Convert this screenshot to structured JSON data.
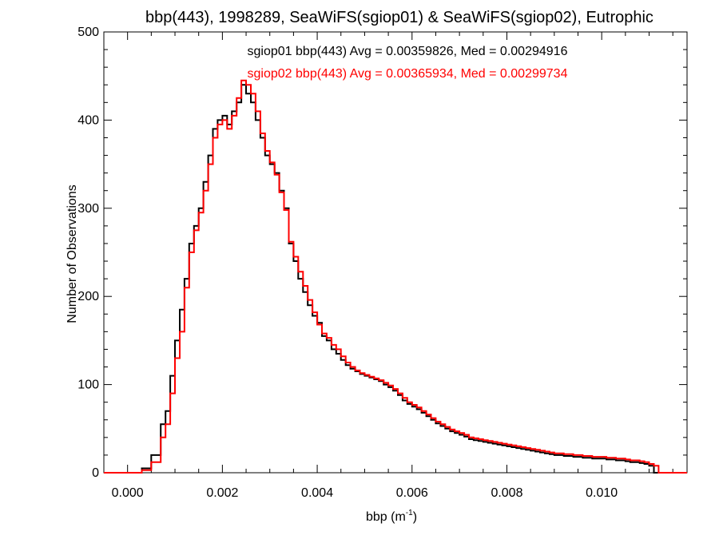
{
  "chart_data": {
    "type": "histogram",
    "title": "bbp(443), 1998289, SeaWiFS(sgiop01) & SeaWiFS(sgiop02), Eutrophic",
    "xlabel_base": "bbp (m",
    "xlabel_sup": "-1",
    "xlabel_close": ")",
    "ylabel": "Number of Observations",
    "xlim": [
      -0.0005,
      0.0118
    ],
    "ylim": [
      0,
      500
    ],
    "xticks": [
      0.0,
      0.002,
      0.004,
      0.006,
      0.008,
      0.01
    ],
    "xtick_labels": [
      "0.000",
      "0.002",
      "0.004",
      "0.006",
      "0.008",
      "0.010"
    ],
    "yticks": [
      0,
      100,
      200,
      300,
      400,
      500
    ],
    "ytick_labels": [
      "0",
      "100",
      "200",
      "300",
      "400",
      "500"
    ],
    "legend_position": "top-center",
    "series": [
      {
        "name": "sgiop01",
        "color": "#000000",
        "annotation": "sgiop01 bbp(443) Avg = 0.00359826, Med = 0.00294916",
        "bins": [
          [
            -0.0005,
            0
          ],
          [
            0.0003,
            5
          ],
          [
            0.0005,
            20
          ],
          [
            0.0007,
            55
          ],
          [
            0.0008,
            70
          ],
          [
            0.0009,
            110
          ],
          [
            0.001,
            150
          ],
          [
            0.0011,
            185
          ],
          [
            0.0012,
            220
          ],
          [
            0.0013,
            260
          ],
          [
            0.0014,
            280
          ],
          [
            0.0015,
            300
          ],
          [
            0.0016,
            330
          ],
          [
            0.0017,
            360
          ],
          [
            0.0018,
            390
          ],
          [
            0.0019,
            400
          ],
          [
            0.002,
            405
          ],
          [
            0.0021,
            395
          ],
          [
            0.0022,
            410
          ],
          [
            0.0023,
            420
          ],
          [
            0.0024,
            440
          ],
          [
            0.0025,
            430
          ],
          [
            0.0026,
            420
          ],
          [
            0.0027,
            400
          ],
          [
            0.0028,
            380
          ],
          [
            0.0029,
            360
          ],
          [
            0.003,
            350
          ],
          [
            0.0031,
            340
          ],
          [
            0.0032,
            320
          ],
          [
            0.0033,
            300
          ],
          [
            0.0034,
            260
          ],
          [
            0.0035,
            240
          ],
          [
            0.0036,
            220
          ],
          [
            0.0037,
            205
          ],
          [
            0.0038,
            190
          ],
          [
            0.0039,
            178
          ],
          [
            0.004,
            170
          ],
          [
            0.0041,
            155
          ],
          [
            0.0042,
            150
          ],
          [
            0.0043,
            140
          ],
          [
            0.0044,
            135
          ],
          [
            0.0045,
            128
          ],
          [
            0.0046,
            122
          ],
          [
            0.0047,
            118
          ],
          [
            0.0048,
            115
          ],
          [
            0.0049,
            112
          ],
          [
            0.005,
            110
          ],
          [
            0.0051,
            108
          ],
          [
            0.0052,
            106
          ],
          [
            0.0053,
            104
          ],
          [
            0.0054,
            100
          ],
          [
            0.0055,
            97
          ],
          [
            0.0056,
            93
          ],
          [
            0.0057,
            88
          ],
          [
            0.0058,
            82
          ],
          [
            0.0059,
            78
          ],
          [
            0.006,
            75
          ],
          [
            0.0061,
            72
          ],
          [
            0.0062,
            68
          ],
          [
            0.0063,
            64
          ],
          [
            0.0064,
            60
          ],
          [
            0.0065,
            56
          ],
          [
            0.0066,
            53
          ],
          [
            0.0067,
            50
          ],
          [
            0.0068,
            47
          ],
          [
            0.0069,
            45
          ],
          [
            0.007,
            43
          ],
          [
            0.0071,
            41
          ],
          [
            0.0072,
            38
          ],
          [
            0.0073,
            37
          ],
          [
            0.0074,
            36
          ],
          [
            0.0075,
            35
          ],
          [
            0.0076,
            34
          ],
          [
            0.0077,
            33
          ],
          [
            0.0078,
            32
          ],
          [
            0.0079,
            31
          ],
          [
            0.008,
            30
          ],
          [
            0.0081,
            29
          ],
          [
            0.0082,
            28
          ],
          [
            0.0083,
            27
          ],
          [
            0.0084,
            26
          ],
          [
            0.0085,
            25
          ],
          [
            0.0086,
            24
          ],
          [
            0.0087,
            23
          ],
          [
            0.0088,
            22
          ],
          [
            0.0089,
            21
          ],
          [
            0.009,
            20
          ],
          [
            0.0091,
            20
          ],
          [
            0.0092,
            19
          ],
          [
            0.0093,
            19
          ],
          [
            0.0094,
            18
          ],
          [
            0.0095,
            18
          ],
          [
            0.0096,
            17
          ],
          [
            0.0097,
            17
          ],
          [
            0.0098,
            16
          ],
          [
            0.0099,
            16
          ],
          [
            0.01,
            16
          ],
          [
            0.0101,
            15
          ],
          [
            0.0102,
            15
          ],
          [
            0.0103,
            14
          ],
          [
            0.0104,
            14
          ],
          [
            0.0105,
            13
          ],
          [
            0.0106,
            12
          ],
          [
            0.0107,
            12
          ],
          [
            0.0108,
            11
          ],
          [
            0.0109,
            10
          ],
          [
            0.011,
            8
          ],
          [
            0.0111,
            0
          ]
        ]
      },
      {
        "name": "sgiop02",
        "color": "#ff0000",
        "annotation": "sgiop02 bbp(443) Avg = 0.00365934, Med = 0.00299734",
        "bins": [
          [
            -0.0005,
            0
          ],
          [
            0.0003,
            3
          ],
          [
            0.0005,
            12
          ],
          [
            0.0007,
            40
          ],
          [
            0.0008,
            55
          ],
          [
            0.0009,
            90
          ],
          [
            0.001,
            130
          ],
          [
            0.0011,
            160
          ],
          [
            0.0012,
            210
          ],
          [
            0.0013,
            250
          ],
          [
            0.0014,
            275
          ],
          [
            0.0015,
            295
          ],
          [
            0.0016,
            320
          ],
          [
            0.0017,
            350
          ],
          [
            0.0018,
            380
          ],
          [
            0.0019,
            395
          ],
          [
            0.002,
            400
          ],
          [
            0.0021,
            390
          ],
          [
            0.0022,
            405
          ],
          [
            0.0023,
            425
          ],
          [
            0.0024,
            445
          ],
          [
            0.0025,
            440
          ],
          [
            0.0026,
            430
          ],
          [
            0.0027,
            410
          ],
          [
            0.0028,
            385
          ],
          [
            0.0029,
            365
          ],
          [
            0.003,
            352
          ],
          [
            0.0031,
            338
          ],
          [
            0.0032,
            318
          ],
          [
            0.0033,
            298
          ],
          [
            0.0034,
            262
          ],
          [
            0.0035,
            245
          ],
          [
            0.0036,
            228
          ],
          [
            0.0037,
            212
          ],
          [
            0.0038,
            196
          ],
          [
            0.0039,
            182
          ],
          [
            0.004,
            168
          ],
          [
            0.0041,
            158
          ],
          [
            0.0042,
            153
          ],
          [
            0.0043,
            145
          ],
          [
            0.0044,
            140
          ],
          [
            0.0045,
            132
          ],
          [
            0.0046,
            125
          ],
          [
            0.0047,
            120
          ],
          [
            0.0048,
            116
          ],
          [
            0.0049,
            113
          ],
          [
            0.005,
            111
          ],
          [
            0.0051,
            109
          ],
          [
            0.0052,
            107
          ],
          [
            0.0053,
            105
          ],
          [
            0.0054,
            102
          ],
          [
            0.0055,
            99
          ],
          [
            0.0056,
            95
          ],
          [
            0.0057,
            90
          ],
          [
            0.0058,
            85
          ],
          [
            0.0059,
            80
          ],
          [
            0.006,
            77
          ],
          [
            0.0061,
            74
          ],
          [
            0.0062,
            70
          ],
          [
            0.0063,
            66
          ],
          [
            0.0064,
            62
          ],
          [
            0.0065,
            58
          ],
          [
            0.0066,
            55
          ],
          [
            0.0067,
            52
          ],
          [
            0.0068,
            49
          ],
          [
            0.0069,
            47
          ],
          [
            0.007,
            45
          ],
          [
            0.0071,
            43
          ],
          [
            0.0072,
            40
          ],
          [
            0.0073,
            39
          ],
          [
            0.0074,
            38
          ],
          [
            0.0075,
            37
          ],
          [
            0.0076,
            36
          ],
          [
            0.0077,
            35
          ],
          [
            0.0078,
            34
          ],
          [
            0.0079,
            33
          ],
          [
            0.008,
            32
          ],
          [
            0.0081,
            31
          ],
          [
            0.0082,
            30
          ],
          [
            0.0083,
            29
          ],
          [
            0.0084,
            28
          ],
          [
            0.0085,
            27
          ],
          [
            0.0086,
            26
          ],
          [
            0.0087,
            25
          ],
          [
            0.0088,
            24
          ],
          [
            0.0089,
            23
          ],
          [
            0.009,
            22
          ],
          [
            0.0091,
            22
          ],
          [
            0.0092,
            21
          ],
          [
            0.0093,
            21
          ],
          [
            0.0094,
            20
          ],
          [
            0.0095,
            20
          ],
          [
            0.0096,
            19
          ],
          [
            0.0097,
            19
          ],
          [
            0.0098,
            18
          ],
          [
            0.0099,
            18
          ],
          [
            0.01,
            18
          ],
          [
            0.0101,
            17
          ],
          [
            0.0102,
            17
          ],
          [
            0.0103,
            16
          ],
          [
            0.0104,
            16
          ],
          [
            0.0105,
            15
          ],
          [
            0.0106,
            14
          ],
          [
            0.0107,
            14
          ],
          [
            0.0108,
            13
          ],
          [
            0.0109,
            12
          ],
          [
            0.011,
            10
          ],
          [
            0.0111,
            8
          ],
          [
            0.0112,
            0
          ]
        ]
      }
    ]
  }
}
